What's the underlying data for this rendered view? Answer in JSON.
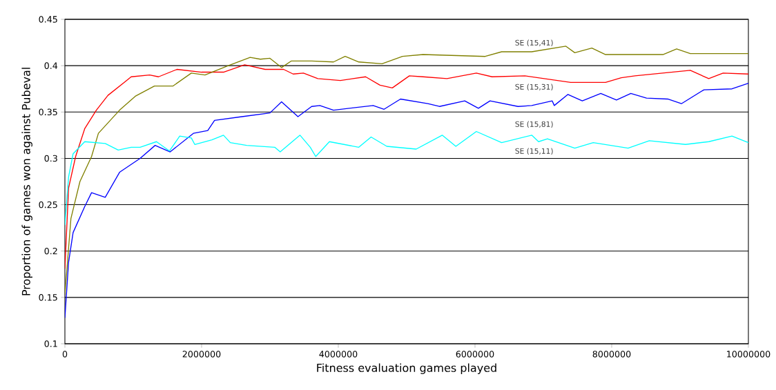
{
  "chart_data": {
    "type": "line",
    "xlabel": "Fitness evaluation games played",
    "ylabel": "Proportion of games won against Pubeval",
    "xlim": [
      0,
      10000000
    ],
    "ylim": [
      0.1,
      0.45
    ],
    "xticks": [
      0,
      2000000,
      4000000,
      6000000,
      8000000,
      10000000
    ],
    "yticks": [
      0.1,
      0.15,
      0.2,
      0.25,
      0.3,
      0.35,
      0.4,
      0.45
    ],
    "grid": "y",
    "marker": "none",
    "line_style": "solid",
    "series": [
      {
        "color": "#ff0000",
        "x": [
          0,
          54000,
          157000,
          290000,
          460000,
          630000,
          870000,
          970000,
          1240000,
          1370000,
          1640000,
          2000000,
          2320000,
          2630000,
          2930000,
          3200000,
          3340000,
          3490000,
          3700000,
          4030000,
          4400000,
          4610000,
          4790000,
          5040000,
          5240000,
          5590000,
          6020000,
          6250000,
          6730000,
          7400000,
          7910000,
          8140000,
          8340000,
          9150000,
          9420000,
          9630000,
          10000000
        ],
        "values": [
          0.181,
          0.268,
          0.302,
          0.332,
          0.352,
          0.368,
          0.382,
          0.388,
          0.39,
          0.388,
          0.396,
          0.393,
          0.393,
          0.401,
          0.396,
          0.396,
          0.391,
          0.392,
          0.386,
          0.384,
          0.388,
          0.379,
          0.376,
          0.389,
          0.388,
          0.386,
          0.392,
          0.388,
          0.389,
          0.382,
          0.382,
          0.387,
          0.389,
          0.395,
          0.386,
          0.392,
          0.391
        ]
      },
      {
        "color": "#808000",
        "x": [
          0,
          88000,
          220000,
          390000,
          490000,
          800000,
          1030000,
          1310000,
          1580000,
          1850000,
          2050000,
          2390000,
          2710000,
          2860000,
          3000000,
          3170000,
          3310000,
          3610000,
          3930000,
          4100000,
          4300000,
          4640000,
          4940000,
          5240000,
          6150000,
          6390000,
          6830000,
          7330000,
          7460000,
          7710000,
          7910000,
          8520000,
          8750000,
          8950000,
          9150000,
          10000000
        ],
        "values": [
          0.153,
          0.235,
          0.275,
          0.302,
          0.327,
          0.352,
          0.367,
          0.378,
          0.378,
          0.392,
          0.39,
          0.4,
          0.409,
          0.407,
          0.408,
          0.398,
          0.405,
          0.405,
          0.404,
          0.41,
          0.404,
          0.402,
          0.41,
          0.412,
          0.41,
          0.415,
          0.415,
          0.421,
          0.414,
          0.419,
          0.412,
          0.412,
          0.412,
          0.418,
          0.413,
          0.413
        ]
      },
      {
        "color": "#0000ff",
        "x": [
          0,
          54000,
          120000,
          290000,
          390000,
          590000,
          800000,
          1100000,
          1320000,
          1540000,
          1880000,
          2090000,
          2190000,
          2590000,
          3000000,
          3170000,
          3410000,
          3610000,
          3730000,
          3930000,
          4510000,
          4670000,
          4910000,
          5310000,
          5480000,
          5850000,
          6050000,
          6220000,
          6630000,
          6830000,
          7130000,
          7160000,
          7360000,
          7570000,
          7840000,
          8070000,
          8280000,
          8510000,
          8820000,
          9020000,
          9350000,
          9760000,
          10000000
        ],
        "values": [
          0.128,
          0.188,
          0.22,
          0.248,
          0.263,
          0.258,
          0.285,
          0.3,
          0.314,
          0.307,
          0.327,
          0.33,
          0.341,
          0.345,
          0.349,
          0.361,
          0.345,
          0.356,
          0.357,
          0.352,
          0.357,
          0.353,
          0.364,
          0.359,
          0.356,
          0.362,
          0.354,
          0.362,
          0.356,
          0.357,
          0.362,
          0.357,
          0.369,
          0.362,
          0.37,
          0.363,
          0.37,
          0.365,
          0.364,
          0.359,
          0.374,
          0.375,
          0.381
        ]
      },
      {
        "color": "#00ffff",
        "x": [
          0,
          54000,
          120000,
          290000,
          590000,
          780000,
          970000,
          1100000,
          1340000,
          1530000,
          1680000,
          1850000,
          1900000,
          2150000,
          2320000,
          2420000,
          2660000,
          3070000,
          3150000,
          3440000,
          3590000,
          3670000,
          3870000,
          4300000,
          4480000,
          4710000,
          5140000,
          5520000,
          5720000,
          6020000,
          6390000,
          6830000,
          6930000,
          7060000,
          7460000,
          7730000,
          8240000,
          8550000,
          9080000,
          9420000,
          9760000,
          10000000
        ],
        "values": [
          0.228,
          0.28,
          0.305,
          0.318,
          0.316,
          0.309,
          0.312,
          0.312,
          0.318,
          0.308,
          0.324,
          0.322,
          0.315,
          0.32,
          0.325,
          0.317,
          0.314,
          0.312,
          0.307,
          0.325,
          0.312,
          0.302,
          0.318,
          0.312,
          0.323,
          0.313,
          0.31,
          0.325,
          0.313,
          0.329,
          0.317,
          0.325,
          0.318,
          0.321,
          0.311,
          0.317,
          0.311,
          0.319,
          0.315,
          0.318,
          0.324,
          0.317
        ]
      }
    ],
    "annotations": [
      "SE (15,41)",
      "SE (15,31)",
      "SE (15,81)",
      "SE (15,11)"
    ]
  }
}
